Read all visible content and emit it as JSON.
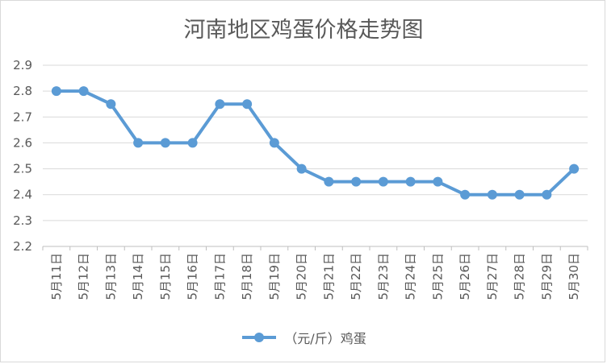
{
  "chart_data": {
    "type": "line",
    "title": "河南地区鸡蛋价格走势图",
    "categories": [
      "5月11日",
      "5月12日",
      "5月13日",
      "5月14日",
      "5月15日",
      "5月16日",
      "5月17日",
      "5月18日",
      "5月19日",
      "5月20日",
      "5月21日",
      "5月22日",
      "5月23日",
      "5月24日",
      "5月25日",
      "5月26日",
      "5月27日",
      "5月28日",
      "5月29日",
      "5月30日"
    ],
    "series": [
      {
        "name": "（元/斤）鸡蛋",
        "values": [
          2.8,
          2.8,
          2.75,
          2.6,
          2.6,
          2.6,
          2.75,
          2.75,
          2.6,
          2.5,
          2.45,
          2.45,
          2.45,
          2.45,
          2.45,
          2.4,
          2.4,
          2.4,
          2.4,
          2.5
        ]
      }
    ],
    "ylim": [
      2.2,
      2.9
    ],
    "yticks": [
      "2.2",
      "2.3",
      "2.4",
      "2.5",
      "2.6",
      "2.7",
      "2.8",
      "2.9"
    ],
    "xlabel": "",
    "ylabel": "",
    "grid": true,
    "legend_position": "bottom",
    "colors": {
      "series": "#5b9bd5",
      "grid": "#d9d9d9",
      "text": "#595959"
    }
  }
}
